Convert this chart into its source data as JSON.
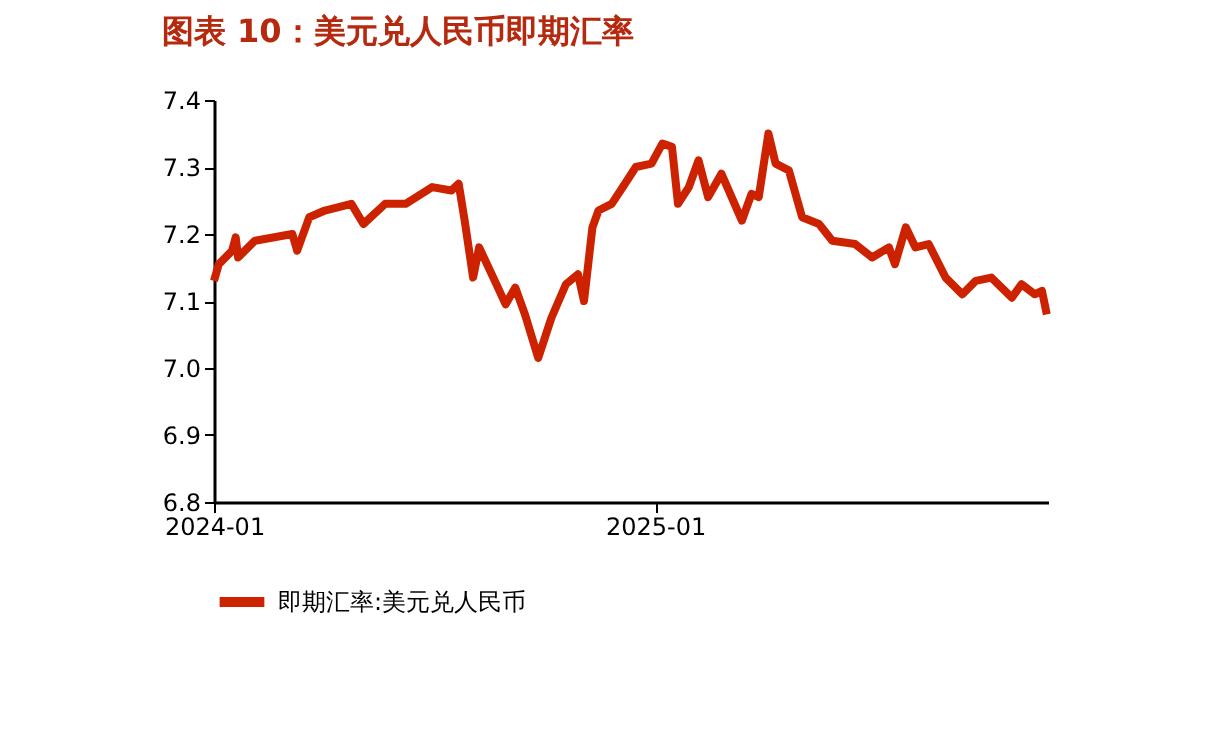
{
  "chart_data": {
    "type": "line",
    "title": "图表 10：美元兑人民币即期汇率",
    "x": [
      "2024-01-01",
      "2024-01-05",
      "2024-01-16",
      "2024-01-19",
      "2024-01-21",
      "2024-02-04",
      "2024-03-06",
      "2024-03-10",
      "2024-03-20",
      "2024-04-02",
      "2024-04-24",
      "2024-05-04",
      "2024-05-22",
      "2024-06-08",
      "2024-06-30",
      "2024-07-16",
      "2024-07-22",
      "2024-07-27",
      "2024-08-03",
      "2024-08-08",
      "2024-08-21",
      "2024-08-30",
      "2024-09-07",
      "2024-09-15",
      "2024-09-26",
      "2024-10-07",
      "2024-10-19",
      "2024-10-29",
      "2024-11-03",
      "2024-11-10",
      "2024-11-15",
      "2024-11-26",
      "2024-12-07",
      "2024-12-16",
      "2024-12-29",
      "2025-01-07",
      "2025-01-15",
      "2025-01-20",
      "2025-01-29",
      "2025-02-06",
      "2025-02-14",
      "2025-02-25",
      "2025-03-14",
      "2025-03-22",
      "2025-03-28",
      "2025-04-05",
      "2025-04-11",
      "2025-04-22",
      "2025-05-03",
      "2025-05-17",
      "2025-05-28",
      "2025-06-16",
      "2025-06-30",
      "2025-07-14",
      "2025-07-19",
      "2025-07-28",
      "2025-08-05",
      "2025-08-16",
      "2025-08-30",
      "2025-09-13",
      "2025-09-24",
      "2025-10-07",
      "2025-10-24",
      "2025-11-01",
      "2025-11-12",
      "2025-11-18",
      "2025-11-22"
    ],
    "series": [
      {
        "name": "即期汇率:美元兑人民币",
        "color": "#cc2200",
        "values": [
          7.13,
          7.155,
          7.175,
          7.195,
          7.165,
          7.19,
          7.2,
          7.175,
          7.225,
          7.235,
          7.245,
          7.215,
          7.245,
          7.245,
          7.27,
          7.265,
          7.275,
          7.22,
          7.135,
          7.18,
          7.13,
          7.095,
          7.12,
          7.08,
          7.015,
          7.075,
          7.125,
          7.14,
          7.1,
          7.21,
          7.235,
          7.245,
          7.275,
          7.3,
          7.305,
          7.335,
          7.33,
          7.245,
          7.27,
          7.31,
          7.255,
          7.29,
          7.22,
          7.26,
          7.255,
          7.35,
          7.305,
          7.295,
          7.225,
          7.215,
          7.19,
          7.185,
          7.165,
          7.18,
          7.155,
          7.21,
          7.18,
          7.185,
          7.135,
          7.11,
          7.13,
          7.135,
          7.105,
          7.125,
          7.11,
          7.115,
          7.08
        ]
      }
    ],
    "xlim": [
      "2024-01-01",
      "2025-11-23"
    ],
    "xticks": [
      "2024-01",
      "2025-01"
    ],
    "ylim": [
      6.8,
      7.4
    ],
    "yticks": [
      6.8,
      6.9,
      {
        "value": 7,
        "label": "7.0"
      },
      7.1,
      7.2,
      7.3,
      7.4
    ],
    "grid": false,
    "legend": "bottom",
    "marker": "none",
    "line_style": "solid"
  }
}
